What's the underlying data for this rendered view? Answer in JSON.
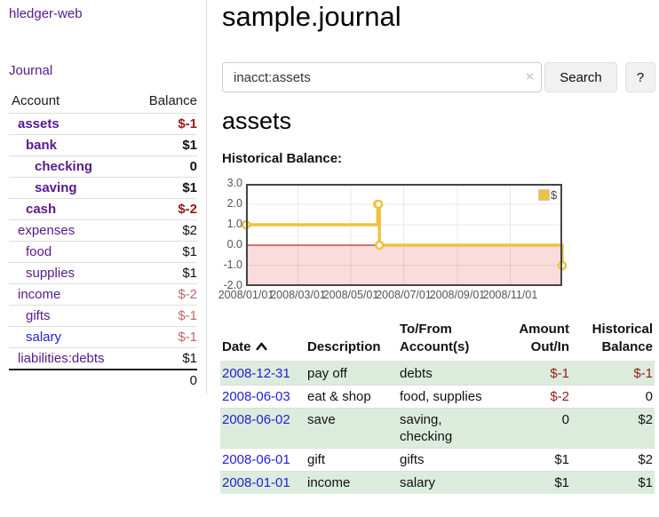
{
  "colors": {
    "link_visited": "#551a8b",
    "link_unvisited": "#2121d6",
    "negative_strong": "#961a1a",
    "negative_soft": "#c06868",
    "row_highlight_green": "#dcecdc",
    "chart_line": "#edc240",
    "chart_negative_fill": "#fbdcdc",
    "chart_zero_line": "#9a0000",
    "chart_border": "#454545"
  },
  "sidebar": {
    "brand": "hledger-web",
    "nav_journal": "Journal",
    "accounts": {
      "header_account": "Account",
      "header_balance": "Balance",
      "rows": [
        {
          "name": "assets",
          "level": 1,
          "bold": true,
          "balance": "$-1",
          "neg": "strong",
          "link": "visited"
        },
        {
          "name": "bank",
          "level": 2,
          "bold": true,
          "balance": "$1",
          "neg": "none",
          "link": "visited"
        },
        {
          "name": "checking",
          "level": 3,
          "bold": true,
          "balance": "0",
          "neg": "none",
          "link": "visited"
        },
        {
          "name": "saving",
          "level": 3,
          "bold": true,
          "balance": "$1",
          "neg": "none",
          "link": "visited"
        },
        {
          "name": "cash",
          "level": 2,
          "bold": true,
          "balance": "$-2",
          "neg": "strong",
          "link": "visited"
        },
        {
          "name": "expenses",
          "level": 1,
          "bold": false,
          "balance": "$2",
          "neg": "none",
          "link": "visited"
        },
        {
          "name": "food",
          "level": 2,
          "bold": false,
          "balance": "$1",
          "neg": "none",
          "link": "visited"
        },
        {
          "name": "supplies",
          "level": 2,
          "bold": false,
          "balance": "$1",
          "neg": "none",
          "link": "visited"
        },
        {
          "name": "income",
          "level": 1,
          "bold": false,
          "balance": "$-2",
          "neg": "soft",
          "link": "visited"
        },
        {
          "name": "gifts",
          "level": 2,
          "bold": false,
          "balance": "$-1",
          "neg": "soft",
          "link": "visited"
        },
        {
          "name": "salary",
          "level": 2,
          "bold": false,
          "balance": "$-1",
          "neg": "soft",
          "link": "unvisited"
        },
        {
          "name": "liabilities:debts",
          "level": 1,
          "bold": false,
          "balance": "$1",
          "neg": "none",
          "link": "visited"
        }
      ],
      "total": "0"
    }
  },
  "main": {
    "title": "sample.journal",
    "search": {
      "value": "inacct:assets",
      "clear_icon": "×",
      "submit_label": "Search",
      "help_label": "?"
    },
    "account_heading": "assets",
    "chart_title": "Historical Balance:"
  },
  "chart_data": {
    "type": "line",
    "step": true,
    "title": "Historical Balance",
    "legend": "$",
    "legend_position": "top-right",
    "x_range": [
      "2008-01-01",
      "2008-12-31"
    ],
    "y_range": [
      -2.0,
      3.0
    ],
    "y_ticks": [
      3.0,
      2.0,
      1.0,
      0.0,
      -1.0,
      -2.0
    ],
    "x_ticks": [
      "2008/01/01",
      "2008/03/01",
      "2008/05/01",
      "2008/07/01",
      "2008/09/01",
      "2008/11/01"
    ],
    "negative_region_shaded": true,
    "grid": true,
    "series": [
      {
        "name": "$",
        "points": [
          [
            "2008-01-01",
            1
          ],
          [
            "2008-06-01",
            2
          ],
          [
            "2008-06-02",
            2
          ],
          [
            "2008-06-03",
            0
          ],
          [
            "2008-12-31",
            -1
          ]
        ]
      }
    ]
  },
  "transactions": {
    "headers": {
      "date": "Date",
      "description": "Description",
      "accounts": "To/From Account(s)",
      "amount": "Amount Out/In",
      "balance": "Historical Balance"
    },
    "sort": "date-ascending-indicator",
    "rows": [
      {
        "date": "2008-12-31",
        "description": "pay off",
        "accounts": "debts",
        "amount": "$-1",
        "amount_neg": true,
        "balance": "$-1",
        "balance_neg": true,
        "highlight": true
      },
      {
        "date": "2008-06-03",
        "description": "eat & shop",
        "accounts": "food, supplies",
        "amount": "$-2",
        "amount_neg": true,
        "balance": "0",
        "balance_neg": false,
        "highlight": false
      },
      {
        "date": "2008-06-02",
        "description": "save",
        "accounts": "saving, checking",
        "amount": "0",
        "amount_neg": false,
        "balance": "$2",
        "balance_neg": false,
        "highlight": true
      },
      {
        "date": "2008-06-01",
        "description": "gift",
        "accounts": "gifts",
        "amount": "$1",
        "amount_neg": false,
        "balance": "$2",
        "balance_neg": false,
        "highlight": false
      },
      {
        "date": "2008-01-01",
        "description": "income",
        "accounts": "salary",
        "amount": "$1",
        "amount_neg": false,
        "balance": "$1",
        "balance_neg": false,
        "highlight": true
      }
    ]
  }
}
